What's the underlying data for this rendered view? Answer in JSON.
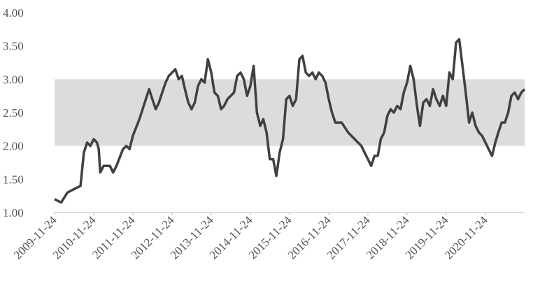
{
  "chart_data": {
    "type": "line",
    "x": [
      "2009-11-24",
      "2010-01-24",
      "2010-03-24",
      "2010-05-24",
      "2010-07-24",
      "2010-08-24",
      "2010-09-24",
      "2010-10-24",
      "2010-11-24",
      "2010-12-24",
      "2011-01-10",
      "2011-01-24",
      "2011-02-24",
      "2011-04-24",
      "2011-05-24",
      "2011-06-24",
      "2011-08-24",
      "2011-09-24",
      "2011-10-24",
      "2011-11-24",
      "2012-01-24",
      "2012-03-24",
      "2012-04-24",
      "2012-05-24",
      "2012-06-24",
      "2012-07-24",
      "2012-08-24",
      "2012-09-24",
      "2012-10-24",
      "2012-11-24",
      "2012-12-24",
      "2013-01-24",
      "2013-02-24",
      "2013-03-24",
      "2013-04-24",
      "2013-05-24",
      "2013-06-24",
      "2013-07-24",
      "2013-08-24",
      "2013-09-24",
      "2013-10-24",
      "2013-11-24",
      "2013-12-24",
      "2014-01-24",
      "2014-02-24",
      "2014-03-24",
      "2014-04-24",
      "2014-05-24",
      "2014-06-24",
      "2014-07-24",
      "2014-08-24",
      "2014-09-24",
      "2014-10-24",
      "2014-11-24",
      "2014-12-24",
      "2015-01-24",
      "2015-02-24",
      "2015-03-24",
      "2015-04-24",
      "2015-05-24",
      "2015-06-24",
      "2015-07-24",
      "2015-08-24",
      "2015-09-24",
      "2015-10-24",
      "2015-11-24",
      "2015-12-24",
      "2016-01-24",
      "2016-02-24",
      "2016-03-24",
      "2016-04-24",
      "2016-05-24",
      "2016-06-24",
      "2016-07-24",
      "2016-08-24",
      "2016-09-24",
      "2016-10-24",
      "2016-11-24",
      "2016-12-24",
      "2017-01-24",
      "2017-03-24",
      "2017-05-24",
      "2017-07-24",
      "2017-09-24",
      "2017-10-24",
      "2017-11-24",
      "2017-12-24",
      "2018-01-24",
      "2018-02-24",
      "2018-03-24",
      "2018-04-24",
      "2018-05-24",
      "2018-06-24",
      "2018-07-24",
      "2018-08-24",
      "2018-09-24",
      "2018-10-24",
      "2018-11-24",
      "2018-12-24",
      "2019-01-24",
      "2019-02-24",
      "2019-03-24",
      "2019-04-24",
      "2019-05-24",
      "2019-06-24",
      "2019-07-24",
      "2019-08-24",
      "2019-09-24",
      "2019-10-24",
      "2019-11-24",
      "2019-12-24",
      "2020-01-24",
      "2020-02-24",
      "2020-03-24",
      "2020-04-24",
      "2020-05-24",
      "2020-06-24",
      "2020-07-24",
      "2020-08-24",
      "2020-09-24",
      "2020-10-24",
      "2020-11-24",
      "2020-12-24",
      "2021-01-24",
      "2021-02-24",
      "2021-03-24",
      "2021-04-24",
      "2021-05-24",
      "2021-06-24",
      "2021-07-24",
      "2021-08-24",
      "2021-09-24",
      "2021-10-24",
      "2021-11-24"
    ],
    "values": [
      1.2,
      1.15,
      1.3,
      1.35,
      1.4,
      1.9,
      2.05,
      2.0,
      2.1,
      2.05,
      1.95,
      1.6,
      1.7,
      1.7,
      1.6,
      1.7,
      1.95,
      2.0,
      1.95,
      2.15,
      2.4,
      2.7,
      2.85,
      2.7,
      2.55,
      2.65,
      2.8,
      2.95,
      3.05,
      3.1,
      3.15,
      3.0,
      3.05,
      2.85,
      2.65,
      2.55,
      2.65,
      2.9,
      3.0,
      2.95,
      3.3,
      3.1,
      2.8,
      2.75,
      2.55,
      2.6,
      2.7,
      2.75,
      2.8,
      3.05,
      3.1,
      3.0,
      2.75,
      2.9,
      3.2,
      2.5,
      2.3,
      2.4,
      2.2,
      1.8,
      1.8,
      1.55,
      1.9,
      2.1,
      2.7,
      2.75,
      2.6,
      2.7,
      3.3,
      3.35,
      3.1,
      3.05,
      3.1,
      3.0,
      3.1,
      3.05,
      2.95,
      2.7,
      2.5,
      2.35,
      2.35,
      2.2,
      2.1,
      2.0,
      1.9,
      1.8,
      1.7,
      1.85,
      1.85,
      2.1,
      2.2,
      2.45,
      2.55,
      2.5,
      2.6,
      2.55,
      2.8,
      2.95,
      3.2,
      3.0,
      2.6,
      2.3,
      2.65,
      2.7,
      2.6,
      2.85,
      2.7,
      2.6,
      2.75,
      2.6,
      3.1,
      3.0,
      3.55,
      3.6,
      3.2,
      2.8,
      2.35,
      2.5,
      2.3,
      2.2,
      2.15,
      2.05,
      1.95,
      1.85,
      2.05,
      2.2,
      2.35,
      2.35,
      2.5,
      2.75,
      2.8,
      2.7,
      2.8,
      2.85
    ],
    "color": "#404040",
    "xlim": [
      "2009-11-24",
      "2021-11-24"
    ],
    "xticks": [
      "2009-11-24",
      "2010-11-24",
      "2011-11-24",
      "2012-11-24",
      "2013-11-24",
      "2014-11-24",
      "2015-11-24",
      "2016-11-24",
      "2017-11-24",
      "2018-11-24",
      "2019-11-24",
      "2020-11-24"
    ],
    "ylim": [
      1,
      4
    ],
    "yticks": [
      {
        "value": 1,
        "label": "1.00"
      },
      {
        "value": 1.5,
        "label": "1.50"
      },
      {
        "value": 2,
        "label": "2.00"
      },
      {
        "value": 2.5,
        "label": "2.50"
      },
      {
        "value": 3,
        "label": "3.00"
      },
      {
        "value": 3.5,
        "label": "3.50"
      },
      {
        "value": 4,
        "label": "4.00"
      }
    ],
    "shaded_range": [
      2,
      3
    ],
    "shaded_color": "#dcdcdc"
  }
}
